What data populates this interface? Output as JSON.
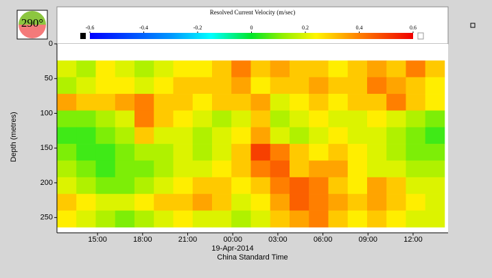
{
  "chart_data": {
    "type": "heatmap",
    "title": "Resolved Current Velocity (m/sec)",
    "heading_label": "290°",
    "y_label": "Depth (metres)",
    "x_label": "China Standard Time",
    "date_label": "19-Apr-2014",
    "invert_y": true,
    "xlim": [
      -11.7,
      14.33
    ],
    "ylim": [
      0,
      272
    ],
    "xticks": [
      {
        "value": -9,
        "label": "15:00"
      },
      {
        "value": -6,
        "label": "18:00"
      },
      {
        "value": -3,
        "label": "21:00"
      },
      {
        "value": 0,
        "label": "00:00"
      },
      {
        "value": 3,
        "label": "03:00"
      },
      {
        "value": 6,
        "label": "06:00"
      },
      {
        "value": 9,
        "label": "09:00"
      },
      {
        "value": 12,
        "label": "12:00"
      }
    ],
    "yticks": [
      0,
      50,
      100,
      150,
      200,
      250
    ],
    "colorbar": {
      "lim": [
        -0.6,
        0.6
      ],
      "ticks": [
        -0.6,
        -0.4,
        -0.2,
        0,
        0.2,
        0.4,
        0.6
      ]
    },
    "x_edges": [
      -11.7,
      -10.41,
      -9.12,
      -7.83,
      -6.54,
      -5.25,
      -3.96,
      -2.67,
      -1.38,
      -0.09,
      1.2,
      2.49,
      3.78,
      5.07,
      6.36,
      7.65,
      8.94,
      10.23,
      11.52,
      12.81,
      14.1
    ],
    "depth_edges": [
      24,
      48,
      72,
      96,
      120,
      144,
      168,
      192,
      216,
      240,
      264
    ],
    "values": [
      [
        0.2,
        0.15,
        0.25,
        0.2,
        0.15,
        0.2,
        0.25,
        0.25,
        0.3,
        0.4,
        0.3,
        0.35,
        0.3,
        0.3,
        0.25,
        0.3,
        0.35,
        0.3,
        0.4,
        0.3
      ],
      [
        0.15,
        0.2,
        0.25,
        0.25,
        0.2,
        0.25,
        0.3,
        0.3,
        0.3,
        0.35,
        0.25,
        0.3,
        0.3,
        0.35,
        0.3,
        0.3,
        0.4,
        0.35,
        0.3,
        0.25
      ],
      [
        0.35,
        0.3,
        0.3,
        0.35,
        0.4,
        0.3,
        0.3,
        0.25,
        0.3,
        0.3,
        0.35,
        0.2,
        0.25,
        0.3,
        0.25,
        0.3,
        0.3,
        0.4,
        0.3,
        0.25
      ],
      [
        0.1,
        0.1,
        0.15,
        0.2,
        0.4,
        0.3,
        0.25,
        0.2,
        0.15,
        0.2,
        0.3,
        0.15,
        0.2,
        0.25,
        0.2,
        0.2,
        0.25,
        0.2,
        0.15,
        0.1
      ],
      [
        0.05,
        0.05,
        0.1,
        0.15,
        0.3,
        0.2,
        0.2,
        0.15,
        0.2,
        0.25,
        0.35,
        0.2,
        0.15,
        0.2,
        0.25,
        0.2,
        0.2,
        0.15,
        0.1,
        0.05
      ],
      [
        0.1,
        0.05,
        0.05,
        0.1,
        0.15,
        0.15,
        0.2,
        0.15,
        0.2,
        0.3,
        0.5,
        0.4,
        0.3,
        0.25,
        0.3,
        0.25,
        0.2,
        0.15,
        0.1,
        0.1
      ],
      [
        0.15,
        0.1,
        0.05,
        0.1,
        0.1,
        0.15,
        0.2,
        0.2,
        0.25,
        0.3,
        0.4,
        0.45,
        0.3,
        0.35,
        0.35,
        0.25,
        0.2,
        0.2,
        0.15,
        0.15
      ],
      [
        0.2,
        0.15,
        0.1,
        0.1,
        0.15,
        0.2,
        0.25,
        0.3,
        0.3,
        0.25,
        0.3,
        0.4,
        0.45,
        0.4,
        0.3,
        0.25,
        0.35,
        0.3,
        0.2,
        0.2
      ],
      [
        0.3,
        0.25,
        0.2,
        0.2,
        0.25,
        0.3,
        0.3,
        0.35,
        0.3,
        0.2,
        0.25,
        0.35,
        0.45,
        0.4,
        0.35,
        0.3,
        0.35,
        0.3,
        0.25,
        0.2
      ],
      [
        0.25,
        0.2,
        0.15,
        0.1,
        0.15,
        0.2,
        0.25,
        0.2,
        0.2,
        0.15,
        0.2,
        0.3,
        0.35,
        0.4,
        0.3,
        0.25,
        0.3,
        0.25,
        0.2,
        0.2
      ]
    ]
  }
}
